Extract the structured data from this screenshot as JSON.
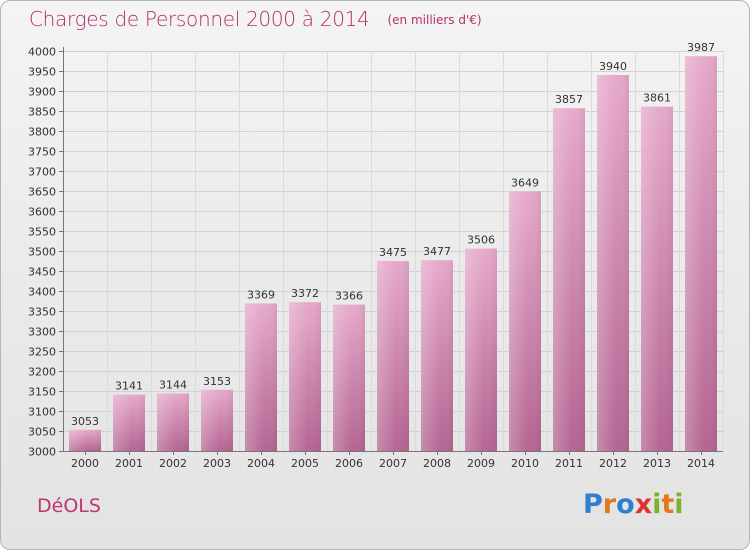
{
  "chart_data": {
    "type": "bar",
    "title": "Charges de Personnel 2000 à 2014",
    "subtitle": "(en milliers d'€)",
    "categories": [
      "2000",
      "2001",
      "2002",
      "2003",
      "2004",
      "2005",
      "2006",
      "2007",
      "2008",
      "2009",
      "2010",
      "2011",
      "2012",
      "2013",
      "2014"
    ],
    "values": [
      3053,
      3141,
      3144,
      3153,
      3369,
      3372,
      3366,
      3475,
      3477,
      3506,
      3649,
      3857,
      3940,
      3861,
      3987
    ],
    "ylim": [
      3000,
      4000
    ],
    "yticks": [
      3000,
      3050,
      3100,
      3150,
      3200,
      3250,
      3300,
      3350,
      3400,
      3450,
      3500,
      3550,
      3600,
      3650,
      3700,
      3750,
      3800,
      3850,
      3900,
      3950,
      4000
    ],
    "grid": true,
    "bar_color": "#c76a9c",
    "title_color": "#b2306c"
  },
  "place_name": "DéOLS",
  "logo": {
    "letters": [
      {
        "ch": "P",
        "color": "#2f7fcf"
      },
      {
        "ch": "r",
        "color": "#e07a1c"
      },
      {
        "ch": "o",
        "color": "#2f7fcf"
      },
      {
        "ch": "x",
        "color": "#e2312f"
      },
      {
        "ch": "i",
        "color": "#7ab32e"
      },
      {
        "ch": "t",
        "color": "#e07a1c"
      },
      {
        "ch": "i",
        "color": "#7ab32e"
      }
    ]
  }
}
